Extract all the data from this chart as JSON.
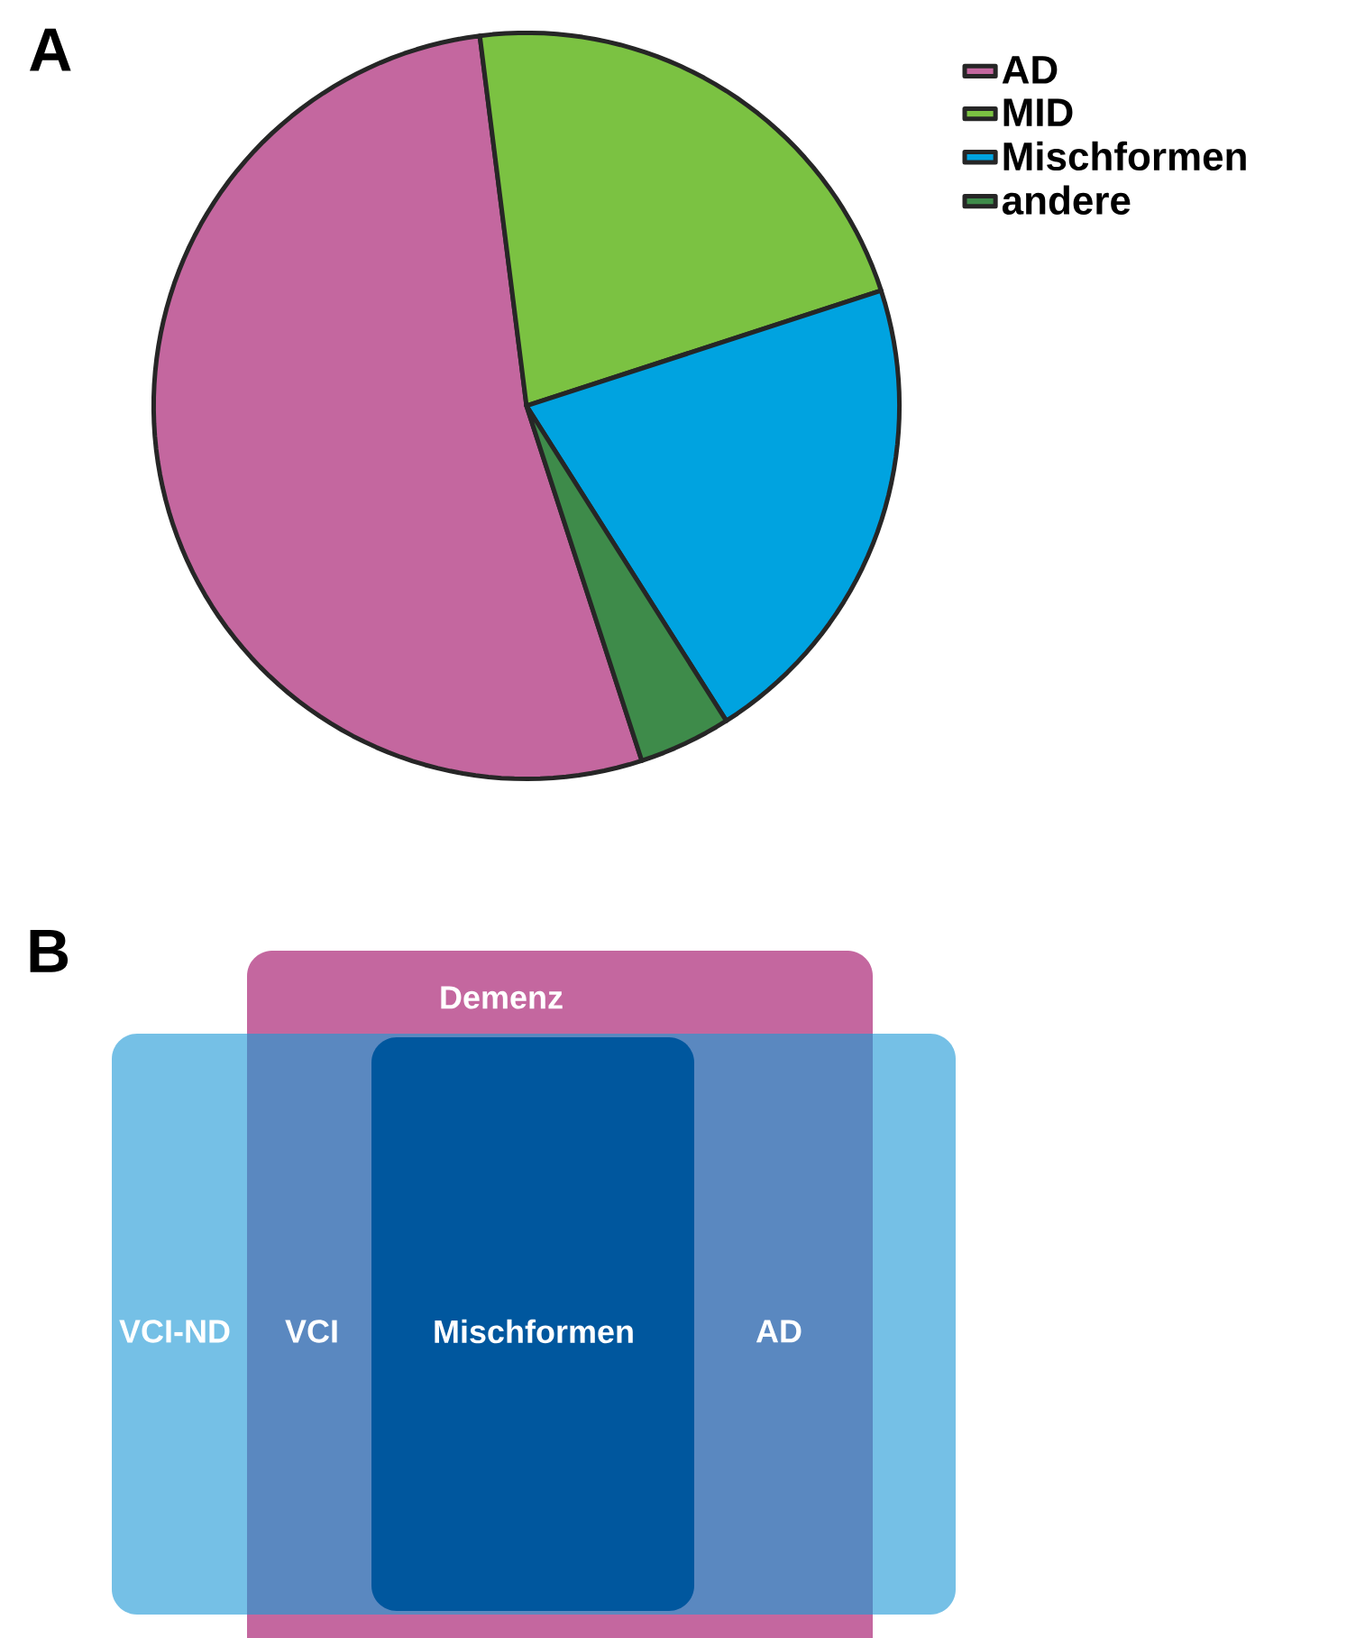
{
  "chart_data": [
    {
      "type": "pie",
      "title": "A",
      "categories": [
        "AD",
        "MID",
        "Mischformen",
        "andere"
      ],
      "values": [
        53,
        22,
        21,
        4
      ],
      "colors": [
        "#c4679f",
        "#7bc242",
        "#00a3e0",
        "#3e8b4a"
      ],
      "legend": "top right"
    },
    {
      "type": "other",
      "title": "B",
      "annotations": [
        "Demenz",
        "VCI-ND",
        "VCI",
        "Mischformen",
        "AD"
      ]
    }
  ]
}
